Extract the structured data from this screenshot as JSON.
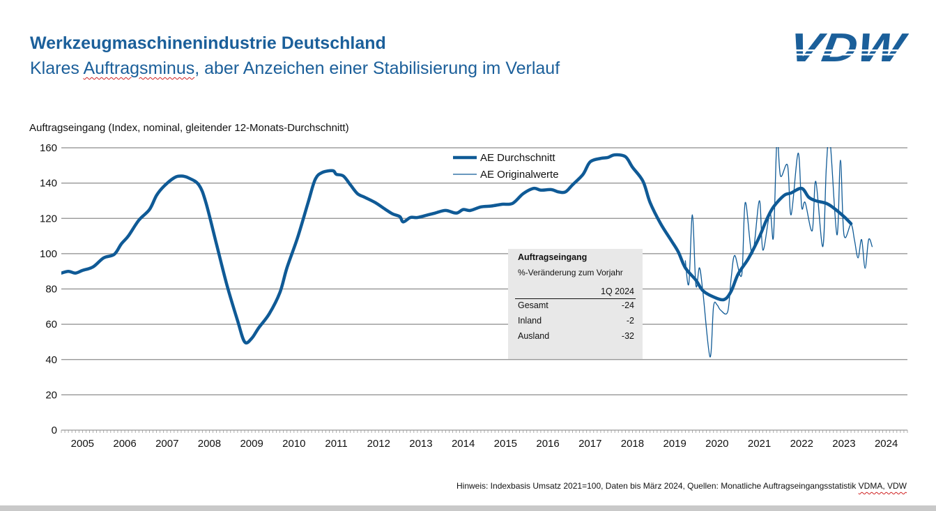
{
  "header": {
    "title": "Werkzeugmaschinenindustrie Deutschland",
    "subtitle_pre": "Klares ",
    "subtitle_squiggle": "Auftragsminus",
    "subtitle_post": ", aber Anzeichen einer Stabilisierung im Verlauf",
    "logo_text": "VDW"
  },
  "footnote": {
    "text": "Hinweis: Indexbasis Umsatz 2021=100, Daten bis März 2024, Quellen: Monatliche Auftragseingangsstatistik ",
    "squiggle": "VDMA, VDW"
  },
  "table": {
    "title": "Auftragseingang",
    "subtitle": "%-Veränderung zum Vorjahr",
    "column": "1Q 2024",
    "rows": [
      {
        "label": "Gesamt",
        "value": "-24"
      },
      {
        "label": "Inland",
        "value": "-2"
      },
      {
        "label": "Ausland",
        "value": "-32"
      }
    ]
  },
  "colors": {
    "accent": "#1b5f9a",
    "series": "#0f5a96",
    "grid": "#8c8c8c",
    "table_bg": "#e8e8e8"
  },
  "chart_data": {
    "type": "line",
    "ylabel": "Auftragseingang (Index, nominal, gleitender 12-Monats-Durchschnitt)",
    "xlabel": "",
    "ylim": [
      0,
      160
    ],
    "yticks": [
      0,
      20,
      40,
      60,
      80,
      100,
      120,
      140,
      160
    ],
    "xlim": [
      "2005-01",
      "2024-12"
    ],
    "xticks": [
      "2005",
      "2006",
      "2007",
      "2008",
      "2009",
      "2010",
      "2011",
      "2012",
      "2013",
      "2014",
      "2015",
      "2016",
      "2017",
      "2018",
      "2019",
      "2020",
      "2021",
      "2022",
      "2023",
      "2024"
    ],
    "grid": true,
    "legend_position": "top-center",
    "series": [
      {
        "name": "AE Durchschnitt",
        "style": "thick",
        "points": [
          [
            "2005-01",
            89
          ],
          [
            "2005-03",
            90
          ],
          [
            "2005-05",
            89
          ],
          [
            "2005-07",
            90.5
          ],
          [
            "2005-10",
            92.5
          ],
          [
            "2006-01",
            97.6
          ],
          [
            "2006-04",
            99.6
          ],
          [
            "2006-06",
            105.5
          ],
          [
            "2006-08",
            110
          ],
          [
            "2006-11",
            119
          ],
          [
            "2007-02",
            125
          ],
          [
            "2007-04",
            133
          ],
          [
            "2007-06",
            138
          ],
          [
            "2007-09",
            143
          ],
          [
            "2007-11",
            144
          ],
          [
            "2008-01",
            143
          ],
          [
            "2008-04",
            139
          ],
          [
            "2008-06",
            129
          ],
          [
            "2008-09",
            105.5
          ],
          [
            "2008-12",
            82
          ],
          [
            "2009-03",
            62
          ],
          [
            "2009-05",
            50
          ],
          [
            "2009-07",
            52
          ],
          [
            "2009-09",
            58
          ],
          [
            "2009-12",
            66
          ],
          [
            "2010-03",
            78
          ],
          [
            "2010-05",
            92
          ],
          [
            "2010-08",
            109
          ],
          [
            "2010-11",
            129
          ],
          [
            "2011-01",
            142
          ],
          [
            "2011-03",
            146
          ],
          [
            "2011-06",
            147
          ],
          [
            "2011-07",
            145
          ],
          [
            "2011-09",
            144
          ],
          [
            "2011-11",
            139
          ],
          [
            "2012-01",
            134
          ],
          [
            "2012-03",
            132
          ],
          [
            "2012-06",
            129
          ],
          [
            "2012-09",
            125
          ],
          [
            "2012-11",
            122.5
          ],
          [
            "2013-01",
            121
          ],
          [
            "2013-02",
            118
          ],
          [
            "2013-04",
            120.5
          ],
          [
            "2013-06",
            120.5
          ],
          [
            "2013-09",
            122
          ],
          [
            "2013-11",
            123
          ],
          [
            "2014-02",
            124.5
          ],
          [
            "2014-05",
            123
          ],
          [
            "2014-07",
            125
          ],
          [
            "2014-09",
            124.5
          ],
          [
            "2014-12",
            126.5
          ],
          [
            "2015-03",
            127
          ],
          [
            "2015-06",
            128
          ],
          [
            "2015-09",
            128.5
          ],
          [
            "2015-12",
            134
          ],
          [
            "2016-03",
            137
          ],
          [
            "2016-05",
            136
          ],
          [
            "2016-08",
            136.3
          ],
          [
            "2016-10",
            135
          ],
          [
            "2016-12",
            135
          ],
          [
            "2017-02",
            139
          ],
          [
            "2017-05",
            145
          ],
          [
            "2017-07",
            152
          ],
          [
            "2017-10",
            154
          ],
          [
            "2017-12",
            154.5
          ],
          [
            "2018-02",
            156
          ],
          [
            "2018-05",
            155
          ],
          [
            "2018-07",
            149
          ],
          [
            "2018-10",
            141
          ],
          [
            "2018-12",
            129
          ],
          [
            "2019-03",
            117
          ],
          [
            "2019-06",
            107.5
          ],
          [
            "2019-08",
            101
          ],
          [
            "2019-10",
            92
          ],
          [
            "2020-01",
            85
          ],
          [
            "2020-03",
            79
          ],
          [
            "2020-06",
            75.5
          ],
          [
            "2020-09",
            74
          ],
          [
            "2020-11",
            78.7
          ],
          [
            "2021-01",
            88.5
          ],
          [
            "2021-04",
            97.6
          ],
          [
            "2021-07",
            109.5
          ],
          [
            "2021-09",
            119
          ],
          [
            "2021-11",
            126.5
          ],
          [
            "2022-02",
            133
          ],
          [
            "2022-04",
            134.4
          ],
          [
            "2022-07",
            137
          ],
          [
            "2022-09",
            132
          ],
          [
            "2022-11",
            130
          ],
          [
            "2023-02",
            128.5
          ],
          [
            "2023-04",
            126
          ],
          [
            "2023-07",
            121
          ],
          [
            "2023-09",
            117
          ]
        ]
      },
      {
        "name": "AE Originalwerte",
        "style": "thin",
        "points": [
          [
            "2019-10",
            96
          ],
          [
            "2019-11",
            83
          ],
          [
            "2019-12",
            122
          ],
          [
            "2020-01",
            82
          ],
          [
            "2020-02",
            92
          ],
          [
            "2020-03",
            78
          ],
          [
            "2020-05",
            41.5
          ],
          [
            "2020-06",
            70
          ],
          [
            "2020-07",
            71
          ],
          [
            "2020-08",
            68
          ],
          [
            "2020-10",
            67
          ],
          [
            "2020-11",
            86
          ],
          [
            "2020-12",
            99
          ],
          [
            "2021-02",
            88
          ],
          [
            "2021-03",
            129
          ],
          [
            "2021-05",
            99.6
          ],
          [
            "2021-07",
            130
          ],
          [
            "2021-08",
            102
          ],
          [
            "2021-10",
            123
          ],
          [
            "2021-11",
            109.5
          ],
          [
            "2021-12",
            165
          ],
          [
            "2022-01",
            144
          ],
          [
            "2022-03",
            150
          ],
          [
            "2022-04",
            122
          ],
          [
            "2022-06",
            157
          ],
          [
            "2022-07",
            126.5
          ],
          [
            "2022-08",
            129
          ],
          [
            "2022-10",
            113
          ],
          [
            "2022-11",
            141
          ],
          [
            "2023-01",
            104
          ],
          [
            "2023-02",
            149
          ],
          [
            "2023-03",
            165
          ],
          [
            "2023-05",
            110.7
          ],
          [
            "2023-06",
            153
          ],
          [
            "2023-07",
            110.7
          ],
          [
            "2023-09",
            116.6
          ],
          [
            "2023-10",
            107.5
          ],
          [
            "2023-11",
            97.6
          ],
          [
            "2023-12",
            108
          ],
          [
            "2024-01",
            91.7
          ],
          [
            "2024-02",
            108
          ],
          [
            "2024-03",
            104
          ]
        ]
      }
    ]
  }
}
